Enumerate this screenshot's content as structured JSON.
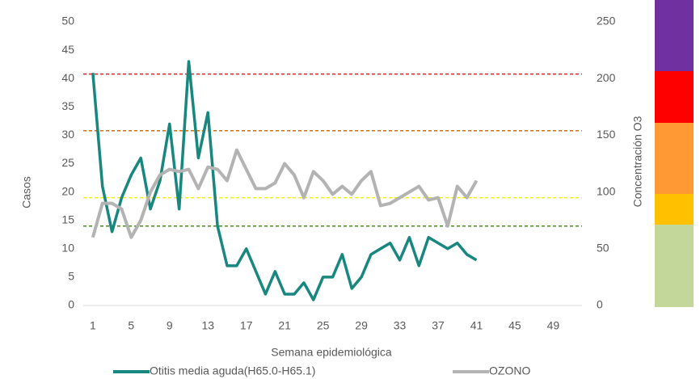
{
  "chart_data": {
    "type": "line",
    "x_label": "Semana epidemiológica",
    "y_label": "Casos",
    "y2_label": "Concentración O3",
    "xlim": [
      0,
      52
    ],
    "xticks": [
      1,
      5,
      9,
      13,
      17,
      21,
      25,
      29,
      33,
      37,
      41,
      45,
      49
    ],
    "ylim": [
      0,
      50
    ],
    "yticks": [
      0,
      5,
      10,
      15,
      20,
      25,
      30,
      35,
      40,
      45,
      50
    ],
    "y2lim": [
      0,
      250
    ],
    "y2ticks": [
      0,
      50,
      100,
      150,
      200,
      250
    ],
    "grid": false,
    "legend": "bottom",
    "x": [
      1,
      2,
      3,
      4,
      5,
      6,
      7,
      8,
      9,
      10,
      11,
      12,
      13,
      14,
      15,
      16,
      17,
      18,
      19,
      20,
      21,
      22,
      23,
      24,
      25,
      26,
      27,
      28,
      29,
      30,
      31,
      32,
      33,
      34,
      35,
      36,
      37,
      38,
      39,
      40,
      41
    ],
    "series": [
      {
        "name": "Otitis media aguda(H65.0-H65.1)",
        "color": "#17877f",
        "axis": "y",
        "values": [
          41,
          21,
          13,
          19,
          23,
          26,
          17,
          22,
          32,
          17,
          43,
          26,
          34,
          14,
          7,
          7,
          10,
          6,
          2,
          6,
          2,
          2,
          4,
          1,
          5,
          5,
          9,
          3,
          5,
          9,
          10,
          11,
          8,
          12,
          7,
          12,
          11,
          10,
          11,
          9,
          8
        ]
      },
      {
        "name": "OZONO",
        "color": "#b3b3b3",
        "axis": "y2",
        "values": [
          60,
          90,
          90,
          85,
          60,
          75,
          100,
          115,
          120,
          118,
          120,
          103,
          122,
          120,
          110,
          137,
          120,
          103,
          103,
          108,
          125,
          115,
          95,
          118,
          110,
          98,
          105,
          98,
          110,
          118,
          88,
          90,
          95,
          100,
          105,
          93,
          95,
          70,
          105,
          95,
          110
        ]
      }
    ],
    "reference_lines": [
      {
        "value": 204,
        "color": "#e02020",
        "axis": "y2"
      },
      {
        "value": 154,
        "color": "#d0701a",
        "axis": "y2"
      },
      {
        "value": 95,
        "color": "#f0f000",
        "axis": "y2"
      },
      {
        "value": 70,
        "color": "#4a8a20",
        "axis": "y2"
      }
    ]
  }
}
